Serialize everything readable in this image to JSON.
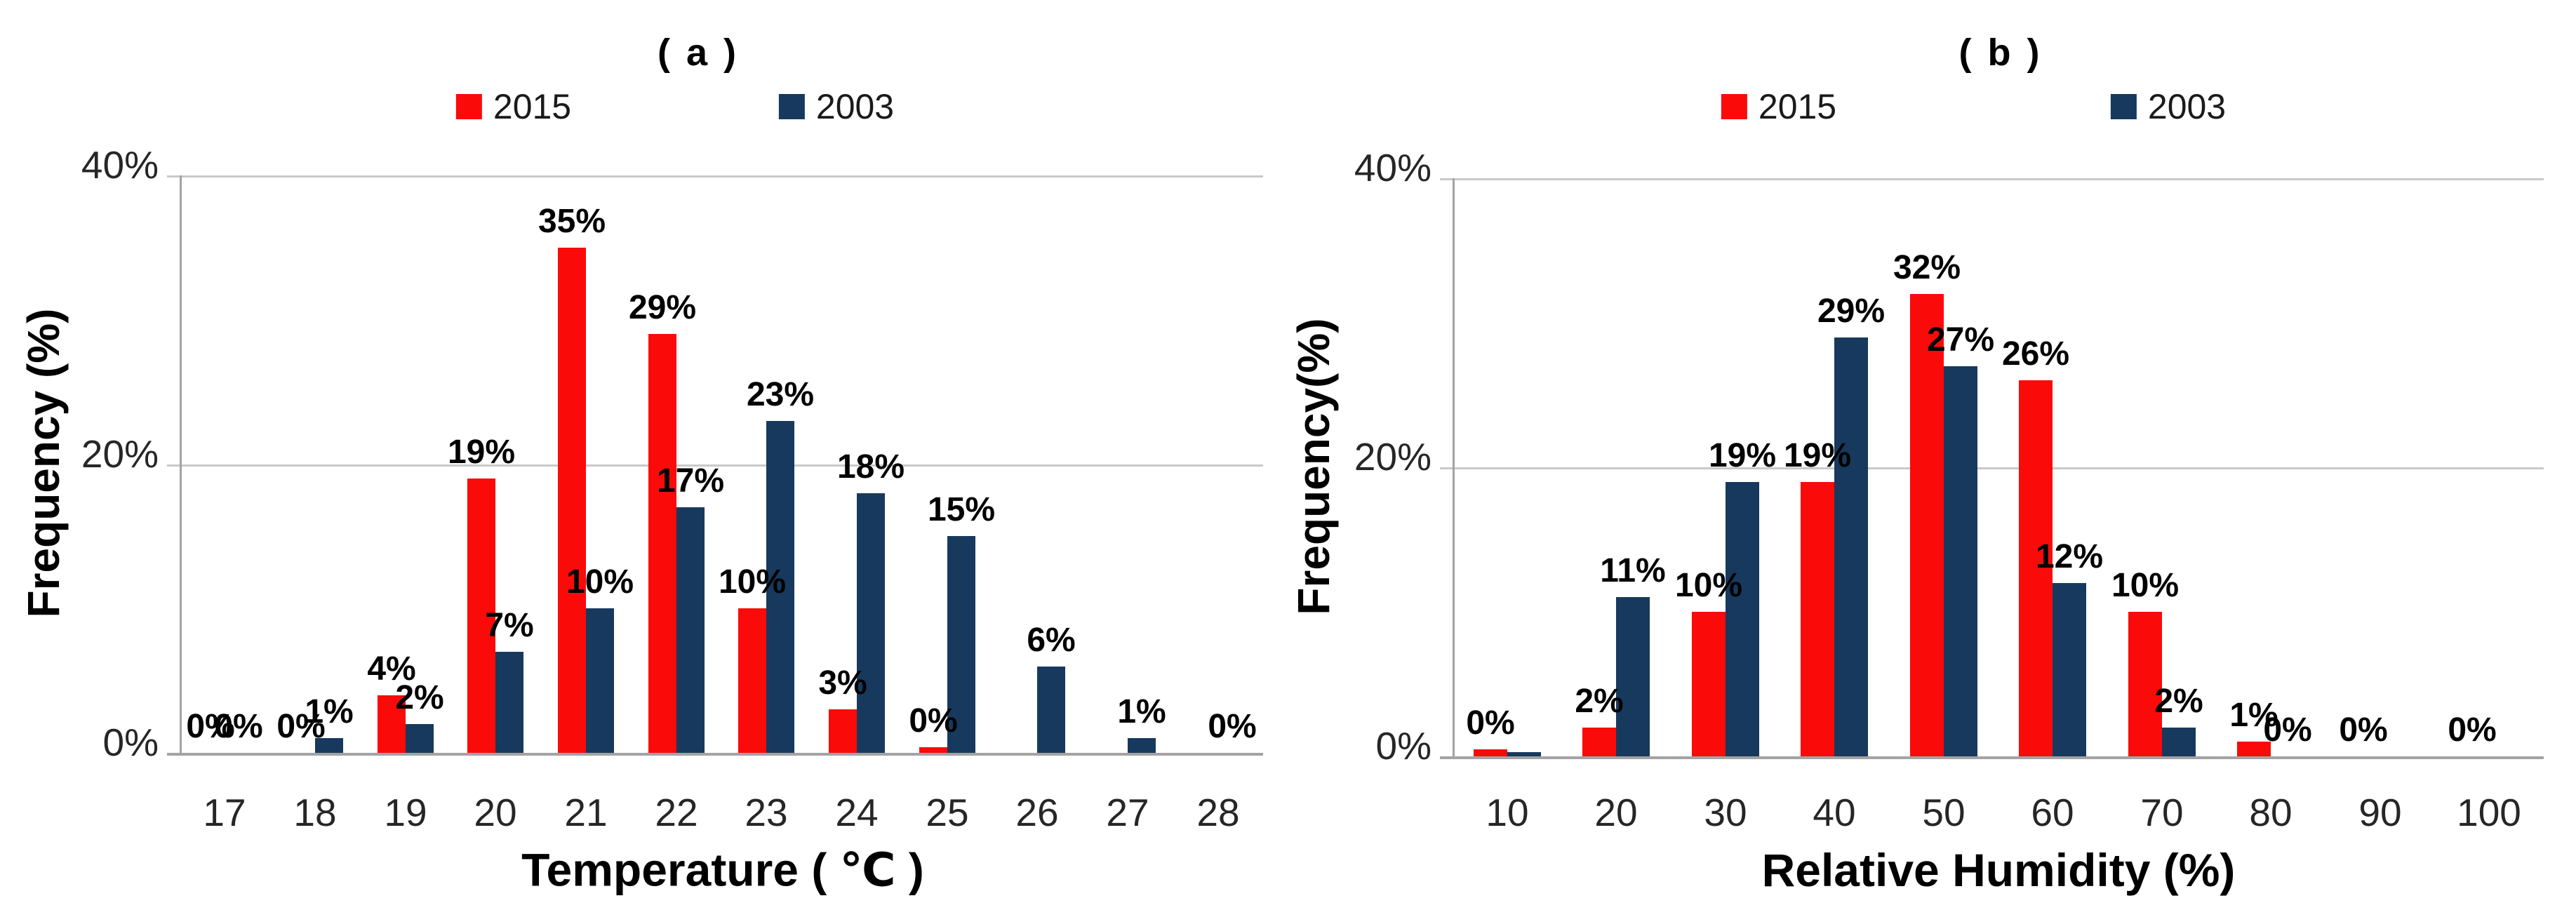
{
  "chart_data": [
    {
      "type": "bar",
      "title": "( a )",
      "xlabel": "Temperature ( ℃ )",
      "ylabel": "Frequency (%)",
      "ylim": [
        0,
        40
      ],
      "yticks": [
        {
          "value": 0,
          "label": "0%"
        },
        {
          "value": 20,
          "label": "20%"
        },
        {
          "value": 40,
          "label": "40%"
        }
      ],
      "grid": "horizontal",
      "legend_position": "top",
      "categories": [
        "17",
        "18",
        "19",
        "20",
        "21",
        "22",
        "23",
        "24",
        "25",
        "26",
        "27",
        "28"
      ],
      "series": [
        {
          "name": "2015",
          "color": "#fb0a0a",
          "values": [
            0,
            0,
            4,
            19,
            35,
            29,
            10,
            3,
            0.4,
            0,
            0,
            0
          ],
          "labels": [
            "0%",
            "0%",
            "4%",
            "19%",
            "35%",
            "29%",
            "10%",
            "3%",
            "0%",
            null,
            null,
            null
          ]
        },
        {
          "name": "2003",
          "color": "#17395d",
          "values": [
            0,
            1,
            2,
            7,
            10,
            17,
            23,
            18,
            15,
            6,
            1,
            0
          ],
          "labels": [
            "0%",
            "1%",
            "2%",
            "7%",
            "10%",
            "17%",
            "23%",
            "18%",
            "15%",
            "6%",
            "1%",
            "0%"
          ]
        }
      ]
    },
    {
      "type": "bar",
      "title": "( b )",
      "xlabel": "Relative Humidity (%)",
      "ylabel": "Frequency(%)",
      "ylim": [
        0,
        40
      ],
      "yticks": [
        {
          "value": 0,
          "label": "0%"
        },
        {
          "value": 20,
          "label": "20%"
        },
        {
          "value": 40,
          "label": "40%"
        }
      ],
      "grid": "horizontal",
      "legend_position": "top",
      "categories": [
        "10",
        "20",
        "30",
        "40",
        "50",
        "60",
        "70",
        "80",
        "90",
        "100"
      ],
      "series": [
        {
          "name": "2015",
          "color": "#fb0a0a",
          "values": [
            0.5,
            2,
            10,
            19,
            32,
            26,
            10,
            1,
            0,
            0
          ],
          "labels": [
            "0%",
            "2%",
            "10%",
            "19%",
            "32%",
            "26%",
            "10%",
            "1%",
            "0%",
            "0%"
          ]
        },
        {
          "name": "2003",
          "color": "#17395d",
          "values": [
            0.3,
            11,
            19,
            29,
            27,
            12,
            2,
            0,
            0,
            0
          ],
          "labels": [
            null,
            "11%",
            "19%",
            "29%",
            "27%",
            "12%",
            "2%",
            "0%",
            null,
            null
          ]
        }
      ]
    }
  ],
  "colors": {
    "series_2015": "#fb0a0a",
    "series_2003": "#17395d",
    "gridline": "#c9c9c9",
    "axis_line": "#a3a3a3",
    "tick_text": "#262626",
    "label_text": "#000000"
  }
}
